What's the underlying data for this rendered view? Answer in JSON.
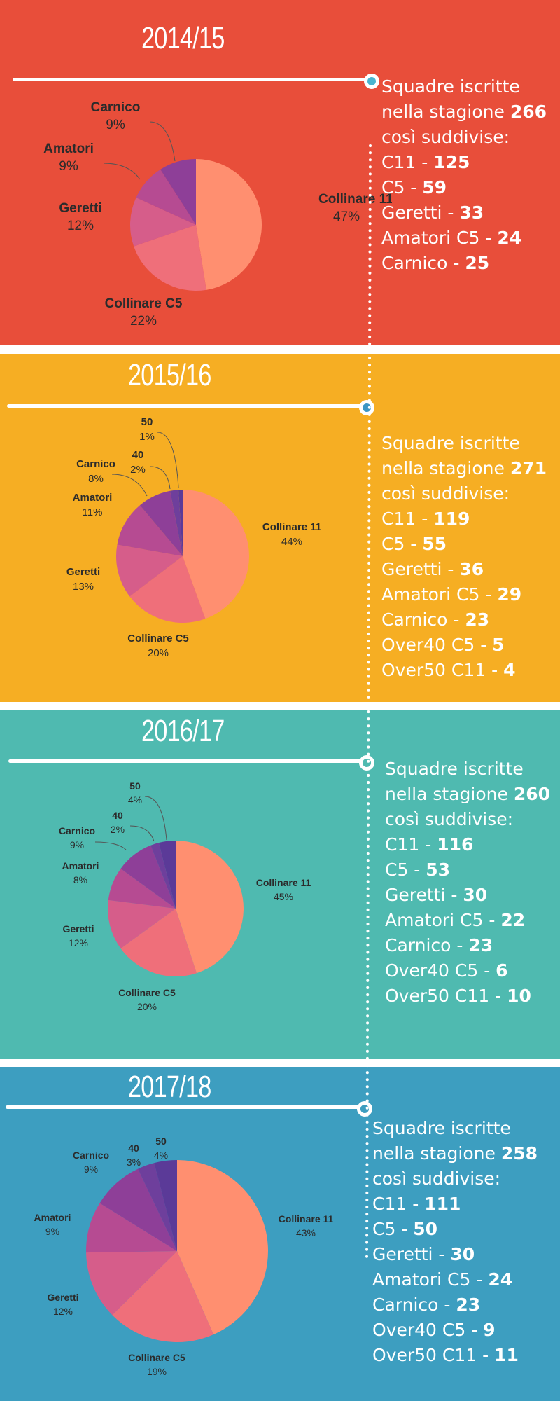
{
  "colors": {
    "panel_backgrounds": [
      "#e84e3a",
      "#f6ae23",
      "#4fbab0",
      "#3d9ec0"
    ],
    "node_fill": [
      "#4ab4cf",
      "#3c96c4",
      "#4fbab0",
      "#3d9ec0"
    ],
    "slice_colors": [
      "#ff8f70",
      "#ef6f7a",
      "#d65d8a",
      "#b64b92",
      "#8e3f98",
      "#6e3f9c",
      "#5b3a98"
    ]
  },
  "seasons": [
    {
      "title": "2014/15",
      "intro_1": "Squadre iscritte",
      "intro_2_prefix": "nella stagione ",
      "intro_2_total": "266",
      "intro_3": "così suddivise:",
      "items": [
        {
          "label": "C11 - ",
          "value": "125"
        },
        {
          "label": "C5 - ",
          "value": "59"
        },
        {
          "label": "Geretti - ",
          "value": "33"
        },
        {
          "label": "Amatori C5 - ",
          "value": "24"
        },
        {
          "label": "Carnico - ",
          "value": "25"
        }
      ]
    },
    {
      "title": "2015/16",
      "intro_1": "Squadre iscritte",
      "intro_2_prefix": "nella stagione ",
      "intro_2_total": "271",
      "intro_3": "così suddivise:",
      "items": [
        {
          "label": "C11 - ",
          "value": "119"
        },
        {
          "label": "C5 - ",
          "value": "55"
        },
        {
          "label": "Geretti - ",
          "value": "36"
        },
        {
          "label": "Amatori C5 - ",
          "value": "29"
        },
        {
          "label": "Carnico - ",
          "value": "23"
        },
        {
          "label": "Over40 C5 - ",
          "value": "5"
        },
        {
          "label": "Over50 C11 - ",
          "value": "4"
        }
      ]
    },
    {
      "title": "2016/17",
      "intro_1": "Squadre iscritte",
      "intro_2_prefix": "nella stagione ",
      "intro_2_total": "260",
      "intro_3": "così suddivise:",
      "items": [
        {
          "label": "C11 - ",
          "value": "116"
        },
        {
          "label": "C5 - ",
          "value": "53"
        },
        {
          "label": "Geretti - ",
          "value": "30"
        },
        {
          "label": "Amatori C5 - ",
          "value": "22"
        },
        {
          "label": "Carnico - ",
          "value": "23"
        },
        {
          "label": "Over40 C5 - ",
          "value": "6"
        },
        {
          "label": "Over50 C11 - ",
          "value": "10"
        }
      ]
    },
    {
      "title": "2017/18",
      "intro_1": "Squadre iscritte",
      "intro_2_prefix": "nella stagione ",
      "intro_2_total": "258",
      "intro_3": "così suddivise:",
      "items": [
        {
          "label": "C11 - ",
          "value": "111"
        },
        {
          "label": "C5 - ",
          "value": "50"
        },
        {
          "label": "Geretti - ",
          "value": "30"
        },
        {
          "label": "Amatori C5 - ",
          "value": "24"
        },
        {
          "label": "Carnico - ",
          "value": "23"
        },
        {
          "label": "Over40 C5 - ",
          "value": "9"
        },
        {
          "label": "Over50 C11 - ",
          "value": "11"
        }
      ]
    }
  ],
  "chart_data": [
    {
      "type": "pie",
      "slices": [
        {
          "name": "Collinare 11",
          "value": 47,
          "label": "47%"
        },
        {
          "name": "Collinare C5",
          "value": 22,
          "label": "22%"
        },
        {
          "name": "Geretti",
          "value": 12,
          "label": "12%"
        },
        {
          "name": "Amatori",
          "value": 9,
          "label": "9%"
        },
        {
          "name": "Carnico",
          "value": 9,
          "label": "9%"
        }
      ]
    },
    {
      "type": "pie",
      "slices": [
        {
          "name": "Collinare 11",
          "value": 44,
          "label": "44%"
        },
        {
          "name": "Collinare C5",
          "value": 20,
          "label": "20%"
        },
        {
          "name": "Geretti",
          "value": 13,
          "label": "13%"
        },
        {
          "name": "Amatori",
          "value": 11,
          "label": "11%"
        },
        {
          "name": "Carnico",
          "value": 8,
          "label": "8%"
        },
        {
          "name": "40",
          "value": 2,
          "label": "2%"
        },
        {
          "name": "50",
          "value": 1,
          "label": "1%"
        }
      ]
    },
    {
      "type": "pie",
      "slices": [
        {
          "name": "Collinare 11",
          "value": 45,
          "label": "45%"
        },
        {
          "name": "Collinare C5",
          "value": 20,
          "label": "20%"
        },
        {
          "name": "Geretti",
          "value": 12,
          "label": "12%"
        },
        {
          "name": "Amatori",
          "value": 8,
          "label": "8%"
        },
        {
          "name": "Carnico",
          "value": 9,
          "label": "9%"
        },
        {
          "name": "40",
          "value": 2,
          "label": "2%"
        },
        {
          "name": "50",
          "value": 4,
          "label": "4%"
        }
      ]
    },
    {
      "type": "pie",
      "slices": [
        {
          "name": "Collinare 11",
          "value": 43,
          "label": "43%"
        },
        {
          "name": "Collinare C5",
          "value": 19,
          "label": "19%"
        },
        {
          "name": "Geretti",
          "value": 12,
          "label": "12%"
        },
        {
          "name": "Amatori",
          "value": 9,
          "label": "9%"
        },
        {
          "name": "Carnico",
          "value": 9,
          "label": "9%"
        },
        {
          "name": "40",
          "value": 3,
          "label": "3%"
        },
        {
          "name": "50",
          "value": 4,
          "label": "4%"
        }
      ]
    }
  ]
}
